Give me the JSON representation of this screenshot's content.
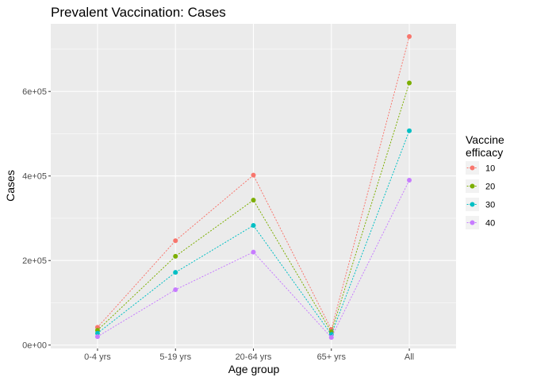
{
  "chart_data": {
    "type": "line",
    "title": "Prevalent Vaccination: Cases",
    "xlabel": "Age group",
    "ylabel": "Cases",
    "categories": [
      "0-4 yrs",
      "5-19 yrs",
      "20-64 yrs",
      "65+ yrs",
      "All"
    ],
    "ylim": [
      -8000,
      760000
    ],
    "yticks": [
      0,
      200000,
      400000,
      600000
    ],
    "ytick_labels": [
      "0e+00",
      "2e+05",
      "4e+05",
      "6e+05"
    ],
    "grid": true,
    "legend": {
      "title_lines": [
        "Vaccine",
        "efficacy"
      ],
      "position": "right"
    },
    "line_style": "dotted",
    "series": [
      {
        "name": "10",
        "color": "#F8766D",
        "values": [
          42000,
          247000,
          402000,
          37000,
          730000
        ]
      },
      {
        "name": "20",
        "color": "#7CAE00",
        "values": [
          35000,
          210000,
          343000,
          31000,
          620000
        ]
      },
      {
        "name": "30",
        "color": "#00BFC4",
        "values": [
          28000,
          172000,
          283000,
          25000,
          507000
        ]
      },
      {
        "name": "40",
        "color": "#C77CFF",
        "values": [
          20000,
          131000,
          220000,
          18000,
          390000
        ]
      }
    ],
    "panel_background": "#EBEBEB",
    "grid_color": "#FFFFFF"
  }
}
